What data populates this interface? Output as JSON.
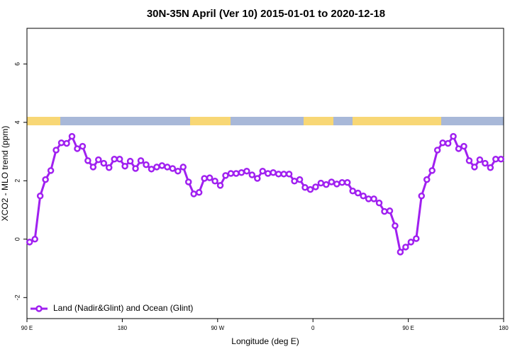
{
  "chart_data": {
    "type": "line",
    "title": "30N-35N April (Ver 10)   2015-01-01 to 2020-12-18",
    "x_label": "Longitude (deg E)",
    "y_label": "XCO2 - MLO trend (ppm)",
    "xlim": [
      90,
      540
    ],
    "xticks": [
      {
        "value": 90,
        "label": "90 E"
      },
      {
        "value": 180,
        "label": "180"
      },
      {
        "value": 270,
        "label": "90 W"
      },
      {
        "value": 360,
        "label": "0"
      },
      {
        "value": 450,
        "label": "90 E"
      },
      {
        "value": 540,
        "label": "180"
      }
    ],
    "ylim": [
      -2.72,
      7.22
    ],
    "yticks": [
      -2,
      0,
      2,
      4,
      6
    ],
    "legend": "bottomleft",
    "x": [
      92.5,
      97.5,
      102.5,
      107.5,
      112.5,
      117.5,
      122.5,
      127.5,
      132.5,
      137.5,
      142.5,
      147.5,
      152.5,
      157.5,
      162.5,
      167.5,
      172.5,
      177.5,
      182.5,
      187.5,
      192.5,
      197.5,
      202.5,
      207.5,
      212.5,
      217.5,
      222.5,
      227.5,
      232.5,
      237.5,
      242.5,
      247.5,
      252.5,
      257.5,
      262.5,
      267.5,
      272.5,
      277.5,
      282.5,
      287.5,
      292.5,
      297.5,
      302.5,
      307.5,
      312.5,
      317.5,
      322.5,
      327.5,
      332.5,
      337.5,
      342.5,
      347.5,
      352.5,
      357.5,
      362.5,
      367.5,
      372.5,
      377.5,
      382.5,
      387.5,
      392.5,
      397.5,
      402.5,
      407.5,
      412.5,
      417.5,
      422.5,
      427.5,
      432.5,
      437.5,
      442.5,
      447.5,
      452.5,
      457.5,
      462.5,
      467.5,
      472.5,
      477.5,
      482.5,
      487.5,
      492.5,
      497.5,
      502.5,
      507.5,
      512.5,
      517.5,
      522.5,
      527.5,
      532.5,
      537.5
    ],
    "series": [
      {
        "name": "Land (Nadir&Glint) and Ocean (Glint)",
        "color": "#a020f0",
        "values": [
          -0.1,
          0.0,
          1.48,
          2.04,
          2.35,
          3.05,
          3.3,
          3.28,
          3.52,
          3.1,
          3.18,
          2.69,
          2.47,
          2.72,
          2.6,
          2.45,
          2.74,
          2.74,
          2.5,
          2.67,
          2.42,
          2.69,
          2.55,
          2.4,
          2.47,
          2.52,
          2.47,
          2.42,
          2.33,
          2.47,
          1.96,
          1.55,
          1.6,
          2.08,
          2.1,
          1.99,
          1.84,
          2.18,
          2.25,
          2.25,
          2.28,
          2.33,
          2.2,
          2.08,
          2.33,
          2.25,
          2.28,
          2.23,
          2.23,
          2.23,
          1.99,
          2.04,
          1.77,
          1.7,
          1.79,
          1.92,
          1.87,
          1.96,
          1.89,
          1.94,
          1.94,
          1.65,
          1.58,
          1.48,
          1.38,
          1.38,
          1.24,
          0.95,
          0.97,
          0.46,
          -0.44,
          -0.27,
          -0.1,
          0.02,
          1.48,
          2.04,
          2.35,
          3.05,
          3.3,
          3.28,
          3.52,
          3.1,
          3.18,
          2.69,
          2.47,
          2.72,
          2.6,
          2.45,
          2.74,
          2.74
        ]
      }
    ]
  }
}
